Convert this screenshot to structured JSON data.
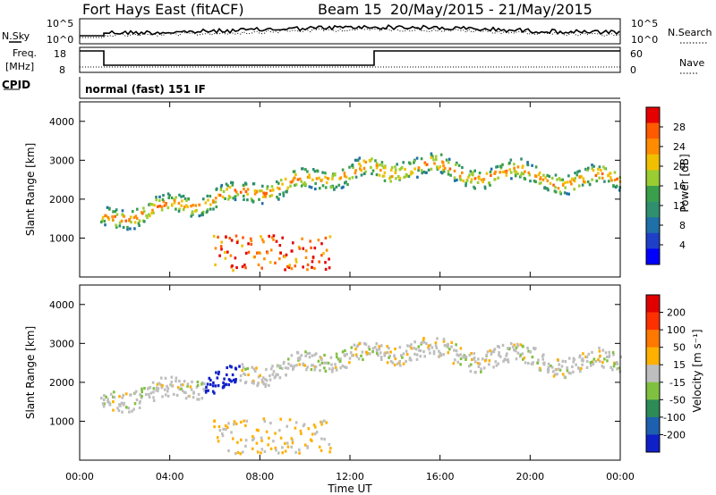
{
  "header": {
    "title": "Fort Hays East (fitACF)",
    "beam": "Beam 15",
    "dates": "20/May/2015 - 21/May/2015"
  },
  "panels": {
    "nsky_label": "N.Sky",
    "nsky_ticks": [
      "10^5",
      "10^0"
    ],
    "nsearch_label": "N.Search",
    "freq_label_1": "Freq.",
    "freq_label_2": "[MHz]",
    "freq_ticks": [
      "18",
      "8"
    ],
    "nave_ticks": [
      "60",
      "0"
    ],
    "nave_label": "Nave",
    "cpid_label": "CPID",
    "cpid_text": "normal (fast) 151 IF"
  },
  "chart_data": [
    {
      "type": "heatmap",
      "name": "power",
      "ylabel": "Slant Range [km]",
      "xlabel": "Time UT",
      "x_ticks": [
        "00:00",
        "04:00",
        "08:00",
        "12:00",
        "16:00",
        "20:00",
        "00:00"
      ],
      "y_ticks": [
        1000,
        2000,
        3000,
        4000
      ],
      "ylim": [
        0,
        4500
      ],
      "xlim_hours": [
        0,
        24
      ],
      "colorbar": {
        "label": "Power [dB]",
        "ticks": [
          4,
          8,
          12,
          16,
          20,
          24,
          28
        ],
        "colors": [
          "#0000ff",
          "#1e40c8",
          "#1f6fa8",
          "#2f8f6f",
          "#3a9f4a",
          "#9acd32",
          "#f0c000",
          "#ff8c00",
          "#ff5a00",
          "#e60000"
        ]
      }
    },
    {
      "type": "heatmap",
      "name": "velocity",
      "ylabel": "Slant Range [km]",
      "xlabel": "Time UT",
      "x_ticks": [
        "00:00",
        "04:00",
        "08:00",
        "12:00",
        "16:00",
        "20:00",
        "00:00"
      ],
      "y_ticks": [
        1000,
        2000,
        3000,
        4000
      ],
      "ylim": [
        0,
        4500
      ],
      "xlim_hours": [
        0,
        24
      ],
      "colorbar": {
        "label": "Velocity [m s⁻¹]",
        "ticks": [
          200,
          100,
          50,
          15,
          -15,
          -50,
          -100,
          -200
        ],
        "colors": [
          "#1020c8",
          "#1e60b0",
          "#2e8b57",
          "#80c040",
          "#bebebe",
          "#ffb000",
          "#ff7800",
          "#ff3000",
          "#e00000"
        ]
      }
    }
  ],
  "colors": {
    "axis": "#000000",
    "ground_scatter": "#bebebe"
  }
}
